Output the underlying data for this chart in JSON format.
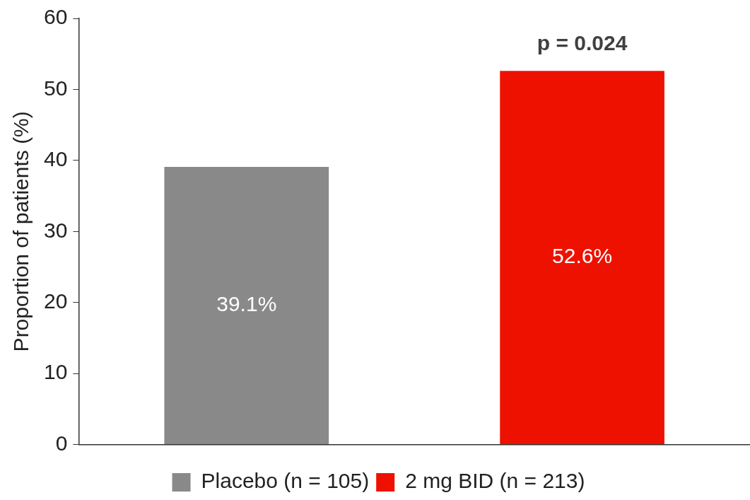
{
  "chart_data": {
    "type": "bar",
    "categories": [
      null
    ],
    "series": [
      {
        "name": "Placebo (n = 105)",
        "color": "#898989",
        "values": [
          39.1
        ],
        "value_labels": [
          "39.1%"
        ]
      },
      {
        "name": "2 mg BID (n = 213)",
        "color": "#ee1100",
        "values": [
          52.6
        ],
        "value_labels": [
          "52.6%"
        ]
      }
    ],
    "ylabel": "Proportion of patients (%)",
    "ylim": [
      0,
      60
    ],
    "yticks": [
      0,
      10,
      20,
      30,
      40,
      50,
      60
    ],
    "annotations": [
      "p = 0.024"
    ],
    "legend": "bottom",
    "grid": false
  }
}
